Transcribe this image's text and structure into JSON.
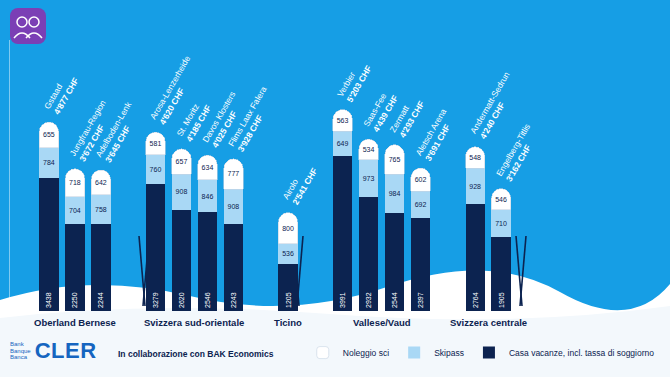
{
  "chart_data": {
    "type": "bar",
    "stacked": true,
    "data_labels": true,
    "tick_labels": false,
    "legend": "bottom",
    "categories": [
      "Gstaad",
      "Jungfrau-Region",
      "Adelboden-Lenk",
      "Arosa-Lenzerheide",
      "St. Moritz",
      "Davos Klosters",
      "Flims Laax Falera",
      "Airolo",
      "Verbier",
      "Saas-Fee",
      "Zermatt",
      "Aletsch Arena",
      "Andermatt-Sedrun",
      "Engelberg-Titlis"
    ],
    "groups": [
      {
        "label": "Oberland Bernese",
        "categories": [
          "Gstaad",
          "Jungfrau-Region",
          "Adelboden-Lenk"
        ]
      },
      {
        "label": "Svizzera sud-orientale",
        "categories": [
          "Arosa-Lenzerheide",
          "St. Moritz",
          "Davos Klosters",
          "Flims Laax Falera"
        ]
      },
      {
        "label": "Ticino",
        "categories": [
          "Airolo"
        ]
      },
      {
        "label": "Vallese/Vaud",
        "categories": [
          "Verbier",
          "Saas-Fee",
          "Zermatt",
          "Aletsch Arena"
        ]
      },
      {
        "label": "Svizzera centrale",
        "categories": [
          "Andermatt-Sedrun",
          "Engelberg-Titlis"
        ]
      }
    ],
    "totals": [
      4877,
      3672,
      3645,
      4620,
      4185,
      4025,
      3928,
      2541,
      5203,
      4439,
      4293,
      3691,
      4240,
      3162
    ],
    "total_labels": [
      "4'877 CHF",
      "3'672 CHF",
      "3'645 CHF",
      "4'620 CHF",
      "4'185 CHF",
      "4'025 CHF",
      "3'928 CHF",
      "2'541 CHF",
      "5'203 CHF",
      "4'439 CHF",
      "4'293 CHF",
      "3'691 CHF",
      "4'240 CHF",
      "3'162 CHF"
    ],
    "series": [
      {
        "name": "Casa vacanze, incl. tassa di soggiorno",
        "color": "#0c2350",
        "values": [
          3438,
          2250,
          2244,
          3279,
          2620,
          2546,
          2243,
          1205,
          3991,
          2932,
          2544,
          2397,
          2764,
          1905
        ]
      },
      {
        "name": "Skipass",
        "color": "#a9d8f5",
        "values": [
          784,
          704,
          758,
          760,
          908,
          846,
          908,
          536,
          649,
          973,
          984,
          692,
          928,
          710
        ]
      },
      {
        "name": "Noleggio sci",
        "color": "#ffffff",
        "values": [
          655,
          718,
          642,
          581,
          657,
          634,
          777,
          800,
          563,
          534,
          765,
          602,
          548,
          546
        ]
      }
    ],
    "ylim": [
      0,
      7000
    ],
    "yticks": []
  },
  "branding": {
    "bank": [
      "Bank",
      "Banque",
      "Banca"
    ],
    "brand": "CLER",
    "credit": "In collaborazione con BAK Economics"
  }
}
